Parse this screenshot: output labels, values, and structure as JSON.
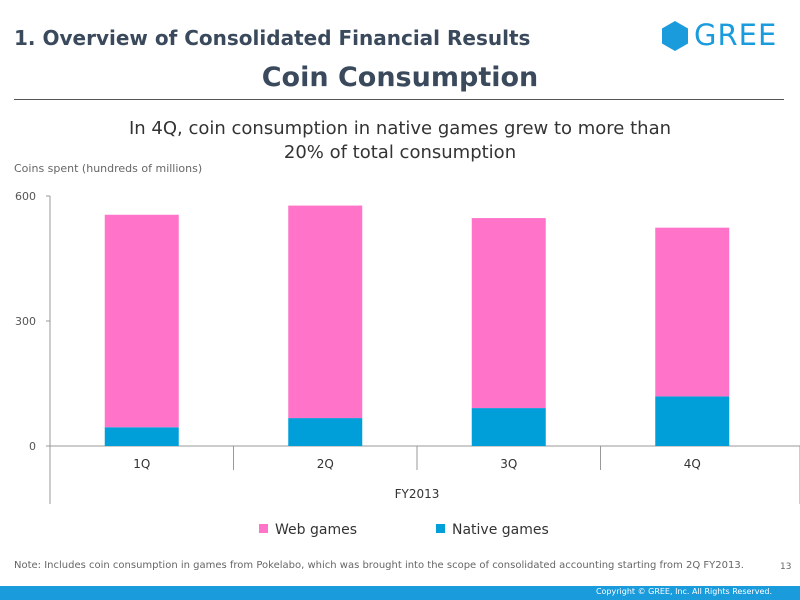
{
  "header": {
    "section_title": "1. Overview of Consolidated Financial Results",
    "slide_title": "Coin Consumption",
    "logo_text": "GREE"
  },
  "headline": {
    "line1": "In 4Q, coin consumption in native games grew to more than",
    "line2": "20% of total consumption"
  },
  "colors": {
    "brand": "#1a9bdc",
    "web_games": "#ff73c9",
    "native_games": "#009fd9",
    "title": "#3a4a5c"
  },
  "chart_data": {
    "type": "bar",
    "stacked": true,
    "ylabel": "Coins spent (hundreds of millions)",
    "ylim": [
      0,
      600
    ],
    "yticks": [
      0,
      300,
      600
    ],
    "categories": [
      "1Q",
      "2Q",
      "3Q",
      "4Q"
    ],
    "group_label": "FY2013",
    "series": [
      {
        "name": "Native games",
        "color": "#009fd9",
        "values": [
          45,
          67,
          91,
          119
        ]
      },
      {
        "name": "Web games",
        "color": "#ff73c9",
        "values": [
          510,
          510,
          456,
          405
        ]
      }
    ],
    "legend": {
      "position": "bottom",
      "order": [
        "Web games",
        "Native games"
      ]
    }
  },
  "legend": {
    "web_label": "Web games",
    "native_label": "Native games"
  },
  "footer": {
    "note": "Note: Includes coin consumption in games from Pokelabo, which was brought into the scope of consolidated accounting starting from 2Q FY2013.",
    "page_number": "13",
    "copyright": "Copyright © GREE, Inc. All Rights Reserved."
  }
}
